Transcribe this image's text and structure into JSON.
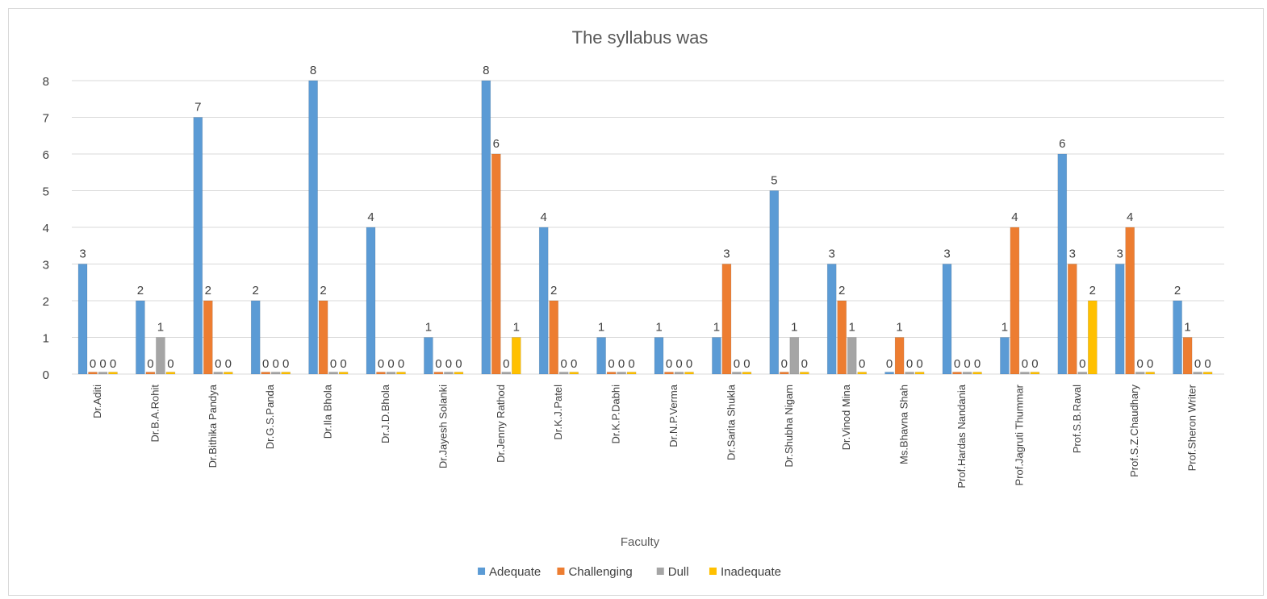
{
  "chart_data": {
    "type": "bar",
    "title": "The syllabus was",
    "xlabel": "Faculty",
    "ylabel": "",
    "ylim": [
      0,
      8
    ],
    "yticks": [
      0,
      1,
      2,
      3,
      4,
      5,
      6,
      7,
      8
    ],
    "grid": true,
    "legend_position": "bottom",
    "categories": [
      "Dr.Aditi",
      "Dr.B.A.Rohit",
      "Dr.Bithika Pandya",
      "Dr.G.S.Panda",
      "Dr.Ila Bhola",
      "Dr.J.D.Bhola",
      "Dr.Jayesh Solanki",
      "Dr.Jenny Rathod",
      "Dr.K.J.Patel",
      "Dr.K.P.Dabhi",
      "Dr.N.P.Verma",
      "Dr.Sarita Shukla",
      "Dr.Shubha Nigam",
      "Dr.Vinod Mina",
      "Ms.Bhavna Shah",
      "Prof.Hardas Nandania",
      "Prof.Jagruti Thummar",
      "Prof.S.B.Raval",
      "Prof.S.Z.Chaudhary",
      "Prof.Sheron Writer"
    ],
    "series": [
      {
        "name": "Adequate",
        "color": "#5b9bd5",
        "values": [
          3,
          2,
          7,
          2,
          8,
          4,
          1,
          8,
          4,
          1,
          1,
          1,
          5,
          3,
          0,
          3,
          1,
          6,
          3,
          2
        ]
      },
      {
        "name": "Challenging",
        "color": "#ed7d31",
        "values": [
          0,
          0,
          2,
          0,
          2,
          0,
          0,
          6,
          2,
          0,
          0,
          3,
          0,
          2,
          1,
          0,
          4,
          3,
          4,
          1
        ]
      },
      {
        "name": "Dull",
        "color": "#a5a5a5",
        "values": [
          0,
          1,
          0,
          0,
          0,
          0,
          0,
          0,
          0,
          0,
          0,
          0,
          1,
          1,
          0,
          0,
          0,
          0,
          0,
          0
        ]
      },
      {
        "name": "Inadequate",
        "color": "#ffc000",
        "values": [
          0,
          0,
          0,
          0,
          0,
          0,
          0,
          1,
          0,
          0,
          0,
          0,
          0,
          0,
          0,
          0,
          0,
          2,
          0,
          0
        ]
      }
    ]
  }
}
